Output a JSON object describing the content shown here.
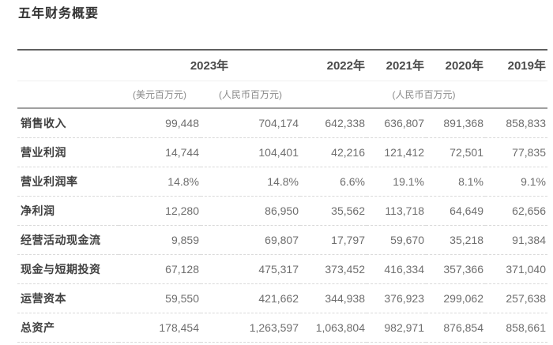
{
  "page": {
    "title": "五年财务概要"
  },
  "table": {
    "year_group_2023": "2023年",
    "years": [
      "2022年",
      "2021年",
      "2020年",
      "2019年"
    ],
    "units": {
      "usd": "(美元百万元)",
      "rmb": "(人民币百万元)",
      "rmb_group": "(人民币百万元)"
    },
    "rows": [
      {
        "label": "销售收入",
        "values": [
          "99,448",
          "704,174",
          "642,338",
          "636,807",
          "891,368",
          "858,833"
        ]
      },
      {
        "label": "营业利润",
        "values": [
          "14,744",
          "104,401",
          "42,216",
          "121,412",
          "72,501",
          "77,835"
        ]
      },
      {
        "label": "营业利润率",
        "values": [
          "14.8%",
          "14.8%",
          "6.6%",
          "19.1%",
          "8.1%",
          "9.1%"
        ]
      },
      {
        "label": "净利润",
        "values": [
          "12,280",
          "86,950",
          "35,562",
          "113,718",
          "64,649",
          "62,656"
        ]
      },
      {
        "label": "经营活动现金流",
        "values": [
          "9,859",
          "69,807",
          "17,797",
          "59,670",
          "35,218",
          "91,384"
        ]
      },
      {
        "label": "现金与短期投资",
        "values": [
          "67,128",
          "475,317",
          "373,452",
          "416,334",
          "357,366",
          "371,040"
        ]
      },
      {
        "label": "运营资本",
        "values": [
          "59,550",
          "421,662",
          "344,938",
          "376,923",
          "299,062",
          "257,638"
        ]
      },
      {
        "label": "总资产",
        "values": [
          "178,454",
          "1,263,597",
          "1,063,804",
          "982,971",
          "876,854",
          "858,661"
        ]
      }
    ],
    "colors": {
      "title_text": "#333333",
      "header_text": "#4a4a4a",
      "unit_text": "#8a8a8a",
      "label_text": "#414141",
      "value_text": "#6e6e6e",
      "top_border": "#616161",
      "header_border": "#a0a0a0",
      "row_divider": "#d9d9d9"
    }
  }
}
